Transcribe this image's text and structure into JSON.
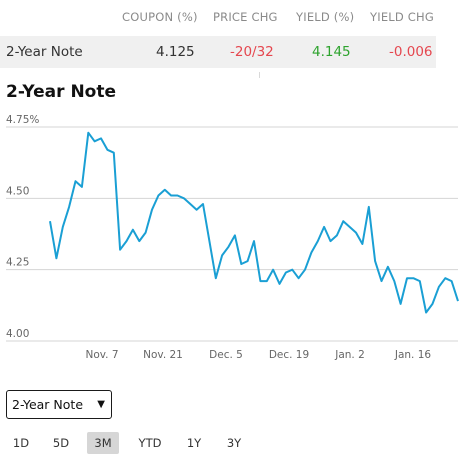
{
  "quote_table": {
    "headers": {
      "coupon": "COUPON (%)",
      "price_chg": "PRICE CHG",
      "yield": "YIELD (%)",
      "yield_chg": "YIELD CHG"
    },
    "row": {
      "name": "2-Year Note",
      "coupon": "4.125",
      "price_chg": "-20/32",
      "yield": "4.145",
      "yield_chg": "-0.006"
    },
    "colors": {
      "negative": "#e5474f",
      "positive": "#2ea32e"
    }
  },
  "chart_title": "2-Year Note",
  "chart_data": {
    "type": "line",
    "title": "2-Year Note",
    "line_color": "#1a9fd4",
    "grid": true,
    "ylim": [
      4.0,
      4.75
    ],
    "y_ticks": [
      "4.75%",
      "4.50",
      "4.25",
      "4.00"
    ],
    "x_ticks": [
      "Nov. 7",
      "Nov. 21",
      "Dec. 5",
      "Dec. 19",
      "Jan. 2",
      "Jan. 16"
    ],
    "values": [
      4.42,
      4.29,
      4.4,
      4.47,
      4.56,
      4.54,
      4.73,
      4.7,
      4.71,
      4.67,
      4.66,
      4.32,
      4.35,
      4.39,
      4.35,
      4.38,
      4.46,
      4.51,
      4.53,
      4.51,
      4.51,
      4.5,
      4.48,
      4.46,
      4.48,
      4.35,
      4.22,
      4.3,
      4.33,
      4.37,
      4.27,
      4.28,
      4.35,
      4.21,
      4.21,
      4.25,
      4.2,
      4.24,
      4.25,
      4.22,
      4.25,
      4.31,
      4.35,
      4.4,
      4.35,
      4.37,
      4.42,
      4.4,
      4.38,
      4.34,
      4.47,
      4.28,
      4.21,
      4.26,
      4.21,
      4.13,
      4.22,
      4.22,
      4.21,
      4.1,
      4.13,
      4.19,
      4.22,
      4.21,
      4.14
    ]
  },
  "controls": {
    "selected_instrument": "2-Year Note",
    "ranges": [
      "1D",
      "5D",
      "3M",
      "YTD",
      "1Y",
      "3Y"
    ],
    "active_range": "3M"
  }
}
